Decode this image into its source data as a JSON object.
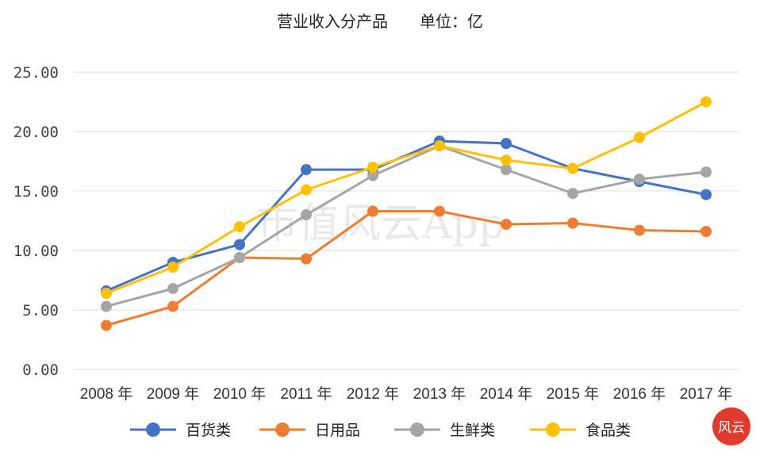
{
  "chart_data": {
    "type": "line",
    "title": "营业收入分产品　　单位：亿",
    "categories": [
      "2008 年",
      "2009 年",
      "2010 年",
      "2011 年",
      "2012 年",
      "2013 年",
      "2014 年",
      "2015 年",
      "2016 年",
      "2017 年"
    ],
    "ylim": [
      0,
      25
    ],
    "yticks": [
      "0.00",
      "5.00",
      "10.00",
      "15.00",
      "20.00",
      "25.00"
    ],
    "grid": true,
    "legend_position": "bottom",
    "series": [
      {
        "name": "百货类",
        "color": "#4472c4",
        "values": [
          6.6,
          9.0,
          10.5,
          16.8,
          16.8,
          19.2,
          19.0,
          16.9,
          15.8,
          14.7
        ]
      },
      {
        "name": "日用品",
        "color": "#ed7d31",
        "values": [
          3.7,
          5.3,
          9.4,
          9.3,
          13.3,
          13.3,
          12.2,
          12.3,
          11.7,
          11.6
        ]
      },
      {
        "name": "生鲜类",
        "color": "#a5a5a5",
        "values": [
          5.3,
          6.8,
          9.4,
          13.0,
          16.3,
          18.8,
          16.8,
          14.8,
          16.0,
          16.6
        ]
      },
      {
        "name": "食品类",
        "color": "#ffc000",
        "values": [
          6.4,
          8.6,
          12.0,
          15.1,
          17.0,
          18.8,
          17.6,
          16.9,
          19.5,
          22.5
        ]
      }
    ]
  },
  "watermark": "市值风云App",
  "logo_text": "风云"
}
